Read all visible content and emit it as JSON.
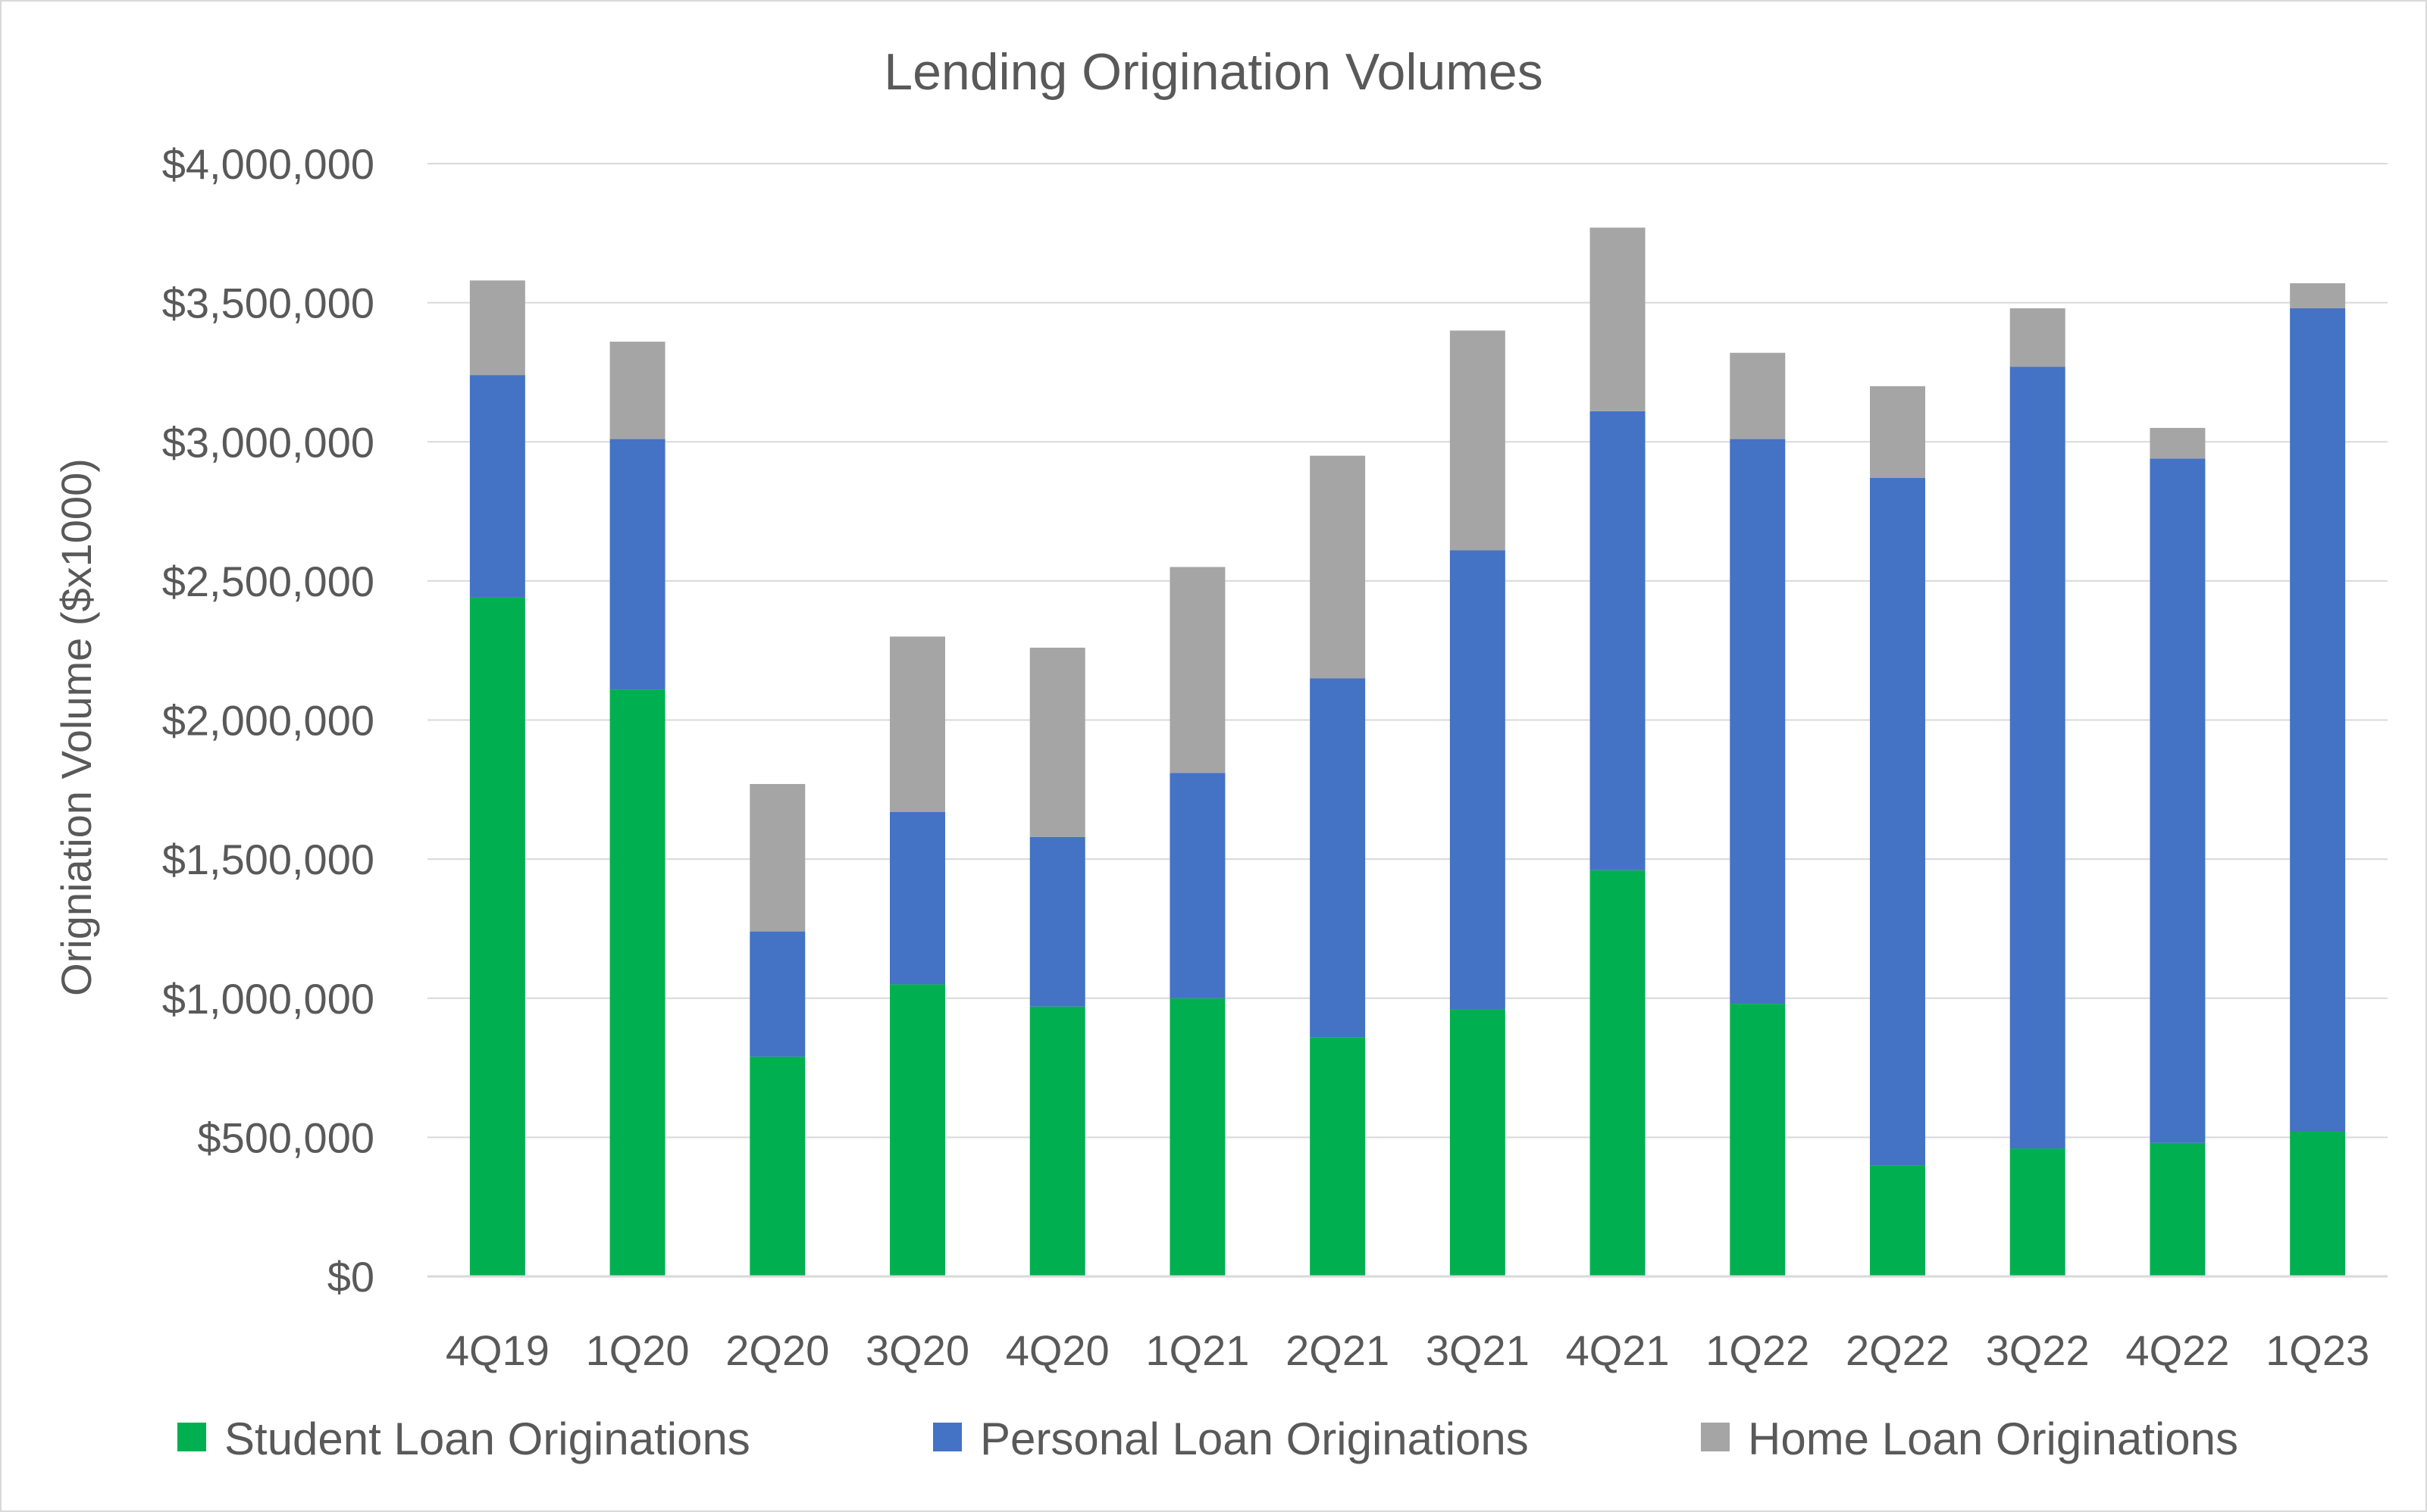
{
  "chart_data": {
    "type": "bar",
    "stacked": true,
    "title": "Lending Origination Volumes",
    "xlabel": "",
    "ylabel": "Origniation Volume ($x1000)",
    "ylim": [
      0,
      4000000
    ],
    "yticks": [
      0,
      500000,
      1000000,
      1500000,
      2000000,
      2500000,
      3000000,
      3500000,
      4000000
    ],
    "ytick_labels": [
      "$0",
      "$500,000",
      "$1,000,000",
      "$1,500,000",
      "$2,000,000",
      "$2,500,000",
      "$3,000,000",
      "$3,500,000",
      "$4,000,000"
    ],
    "grid": true,
    "legend_position": "bottom",
    "categories": [
      "4Q19",
      "1Q20",
      "2Q20",
      "3Q20",
      "4Q20",
      "1Q21",
      "2Q21",
      "3Q21",
      "4Q21",
      "1Q22",
      "2Q22",
      "3Q22",
      "4Q22",
      "1Q23"
    ],
    "series": [
      {
        "name": "Student Loan Originations",
        "color": "#00b050",
        "values": [
          2440000,
          2110000,
          790000,
          1050000,
          970000,
          1000000,
          860000,
          960000,
          1460000,
          980000,
          400000,
          460000,
          480000,
          520000
        ]
      },
      {
        "name": "Personal Loan Originations",
        "color": "#4472c4",
        "values": [
          800000,
          900000,
          450000,
          620000,
          610000,
          810000,
          1290000,
          1650000,
          1650000,
          2030000,
          2470000,
          2810000,
          2460000,
          2960000
        ]
      },
      {
        "name": "Home Loan Originations",
        "color": "#a5a5a5",
        "values": [
          340000,
          350000,
          530000,
          630000,
          680000,
          740000,
          800000,
          790000,
          660000,
          310000,
          330000,
          210000,
          110000,
          90000
        ]
      }
    ]
  }
}
